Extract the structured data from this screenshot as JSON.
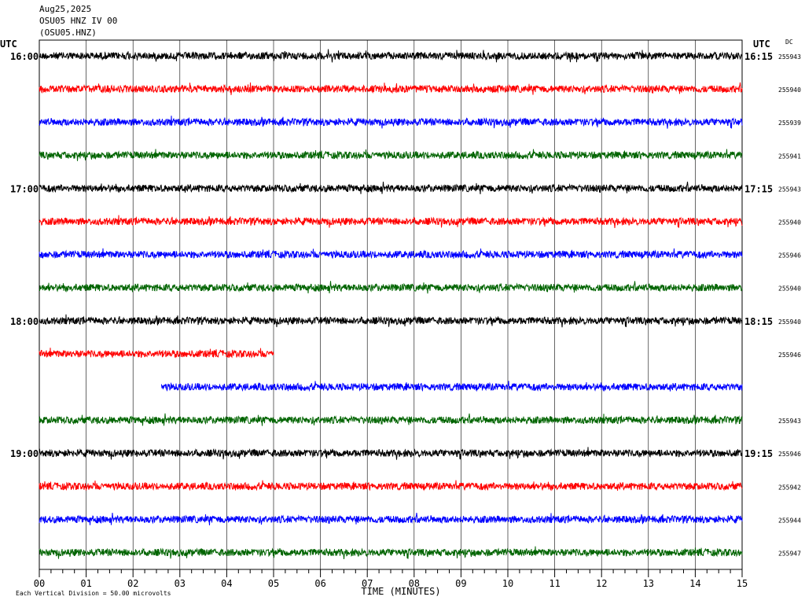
{
  "header": {
    "date": "Aug25,2025",
    "station_line": "OSU05 HNZ IV 00",
    "channel_line": "(OSU05.HNZ)"
  },
  "chart_data": {
    "type": "line",
    "title": "",
    "left_axis_label": "UTC",
    "right_axis_label": "UTC",
    "dc_label": "DC",
    "xlabel": "TIME (MINUTES)",
    "xlim": [
      0,
      15
    ],
    "x_tick_labels": [
      "00",
      "01",
      "02",
      "03",
      "04",
      "05",
      "06",
      "07",
      "08",
      "09",
      "10",
      "11",
      "12",
      "13",
      "14",
      "15"
    ],
    "scale_note": "Each Vertical Division =   50.00 microvolts",
    "grid": true,
    "line_colors": [
      "#000000",
      "#ff0000",
      "#0000ff",
      "#006400"
    ],
    "hour_labels": [
      {
        "left": "16:00",
        "right": "16:15",
        "row": 0
      },
      {
        "left": "17:00",
        "right": "17:15",
        "row": 4
      },
      {
        "left": "18:00",
        "right": "18:15",
        "row": 8
      },
      {
        "left": "19:00",
        "right": "19:15",
        "row": 12
      }
    ],
    "traces": [
      {
        "row": 0,
        "start_min": 0,
        "end_min": 15,
        "dc": "255943"
      },
      {
        "row": 1,
        "start_min": 0,
        "end_min": 15,
        "dc": "255940"
      },
      {
        "row": 2,
        "start_min": 0,
        "end_min": 15,
        "dc": "255939"
      },
      {
        "row": 3,
        "start_min": 0,
        "end_min": 15,
        "dc": "255941"
      },
      {
        "row": 4,
        "start_min": 0,
        "end_min": 15,
        "dc": "255943"
      },
      {
        "row": 5,
        "start_min": 0,
        "end_min": 15,
        "dc": "255940"
      },
      {
        "row": 6,
        "start_min": 0,
        "end_min": 15,
        "dc": "255946"
      },
      {
        "row": 7,
        "start_min": 0,
        "end_min": 15,
        "dc": "255940"
      },
      {
        "row": 8,
        "start_min": 0,
        "end_min": 15,
        "dc": "255940"
      },
      {
        "row": 9,
        "start_min": 0,
        "end_min": 5,
        "dc": "255946"
      },
      {
        "row": 10,
        "start_min": 2.6,
        "end_min": 15,
        "dc": ""
      },
      {
        "row": 11,
        "start_min": 0,
        "end_min": 15,
        "dc": "255943"
      },
      {
        "row": 12,
        "start_min": 0,
        "end_min": 15,
        "dc": "255946"
      },
      {
        "row": 13,
        "start_min": 0,
        "end_min": 15,
        "dc": "255942"
      },
      {
        "row": 14,
        "start_min": 0,
        "end_min": 15,
        "dc": "255944"
      },
      {
        "row": 15,
        "start_min": 0,
        "end_min": 15,
        "dc": "255947"
      }
    ]
  }
}
